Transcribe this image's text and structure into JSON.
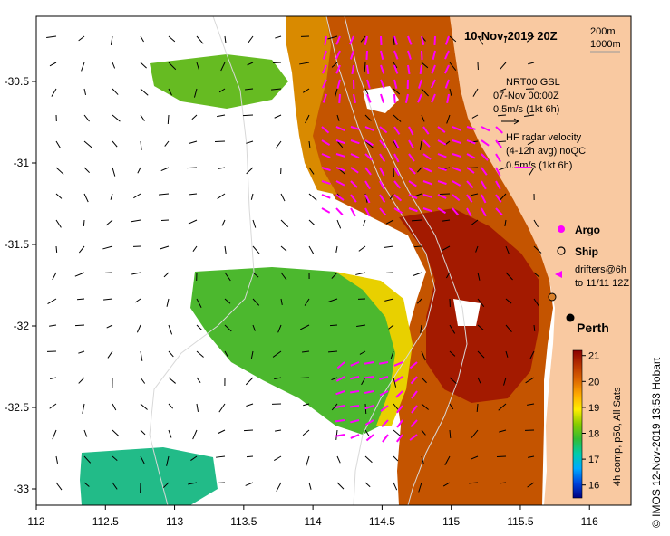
{
  "map": {
    "title": "10-Nov-2019 20Z",
    "depth_labels": [
      "200m",
      "1000m"
    ],
    "x_ticks": [
      "112",
      "112.5",
      "113",
      "113.5",
      "114",
      "114.5",
      "115",
      "115.5",
      "116"
    ],
    "y_ticks": [
      "-30.5",
      "-31",
      "-31.5",
      "-32",
      "-32.5",
      "-33"
    ],
    "lon_range": [
      112,
      116.3
    ],
    "lat_range": [
      -33.1,
      -30.1
    ],
    "place_label": "Perth",
    "side_caption": "© IMOS 12-Nov-2019 13:53 Hobart",
    "colors": {
      "land": "#f9c9a1",
      "sea_warm": "#c04a00",
      "sea_hot": "#a01f00",
      "sea_mid": "#d9a000",
      "sea_cool": "#33aa33",
      "arrows_radar": "#ff00ff"
    }
  },
  "legend": {
    "model_line1": "NRT00 GSL",
    "model_line2": "07-Nov 00:00Z",
    "model_scale": "0.5m/s (1kt 6h)",
    "radar_line1": "HF radar velocity",
    "radar_line2": "(4-12h avg) noQC",
    "radar_scale": "0.5m/s (1kt 6h)",
    "argo": "Argo",
    "ship": "Ship",
    "drifters_line1": "drifters@6h",
    "drifters_line2": "to 11/11 12Z"
  },
  "colorbar": {
    "ticks": [
      "21",
      "20",
      "19",
      "18",
      "17",
      "16"
    ],
    "label": "4h comp, p50, All Sats",
    "range": [
      15.5,
      21.2
    ],
    "colors": [
      "#000080",
      "#0044dd",
      "#00aaff",
      "#00ccaa",
      "#33bb33",
      "#88cc00",
      "#ffee00",
      "#ffaa00",
      "#dd6600",
      "#b83300",
      "#8b0000"
    ]
  }
}
